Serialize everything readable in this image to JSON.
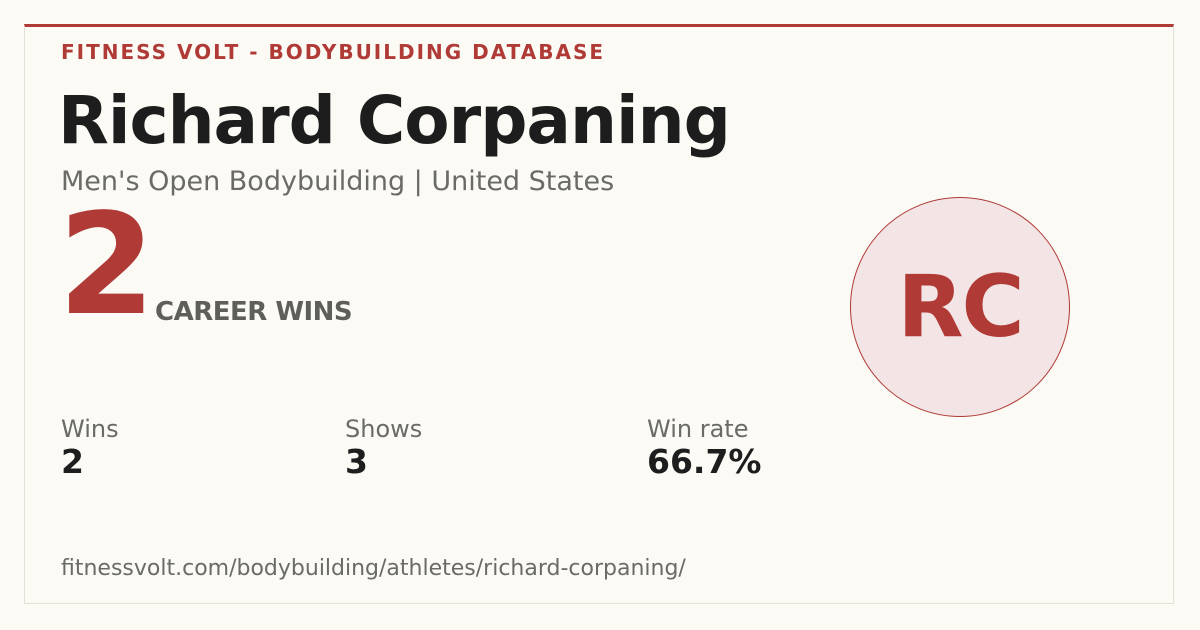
{
  "header": {
    "brand": "FITNESS VOLT - BODYBUILDING DATABASE"
  },
  "athlete": {
    "name": "Richard Corpaning",
    "subtitle": "Men's Open Bodybuilding | United States",
    "initials": "RC"
  },
  "career_wins": {
    "value": "2",
    "label": "CAREER WINS"
  },
  "stats": [
    {
      "label": "Wins",
      "value": "2"
    },
    {
      "label": "Shows",
      "value": "3"
    },
    {
      "label": "Win rate",
      "value": "66.7%"
    }
  ],
  "footer": {
    "url": "fitnessvolt.com/bodybuilding/athletes/richard-corpaning/"
  }
}
